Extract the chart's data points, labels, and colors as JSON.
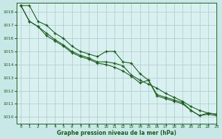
{
  "title": "Graphe pression niveau de la mer (hPa)",
  "background_color": "#c8e8e8",
  "plot_bg_color": "#d8f0f0",
  "grid_color": "#a8c8c8",
  "line_color": "#1a5c1a",
  "xlabel": "Graphe pression niveau de la mer (hPa)",
  "xlim": [
    -0.5,
    23
  ],
  "ylim": [
    1009.5,
    1018.7
  ],
  "yticks": [
    1010,
    1011,
    1012,
    1013,
    1014,
    1015,
    1016,
    1017,
    1018
  ],
  "xticks": [
    0,
    1,
    2,
    3,
    4,
    5,
    6,
    7,
    8,
    9,
    10,
    11,
    12,
    13,
    14,
    15,
    16,
    17,
    18,
    19,
    20,
    21,
    22,
    23
  ],
  "series1": [
    1018.5,
    1018.5,
    1017.3,
    1017.0,
    1016.4,
    1016.0,
    1015.4,
    1015.0,
    1014.8,
    1014.6,
    1015.0,
    1015.0,
    1014.2,
    1014.1,
    1013.3,
    1012.8,
    1011.7,
    1011.5,
    1011.3,
    1011.1,
    1010.5,
    1010.1,
    1010.3,
    1010.2
  ],
  "series2": [
    1018.5,
    1017.3,
    1016.9,
    1016.4,
    1015.9,
    1015.5,
    1015.0,
    1014.7,
    1014.5,
    1014.2,
    1014.2,
    1014.1,
    1013.9,
    1013.2,
    1012.8,
    1012.5,
    1012.2,
    1011.8,
    1011.5,
    1011.2,
    1010.8,
    1010.5,
    1010.3,
    1010.2
  ],
  "series3": [
    1018.5,
    1017.3,
    1016.9,
    1016.2,
    1015.8,
    1015.4,
    1014.9,
    1014.6,
    1014.4,
    1014.1,
    1014.0,
    1013.8,
    1013.5,
    1013.1,
    1012.6,
    1012.8,
    1011.6,
    1011.4,
    1011.2,
    1011.0,
    1010.5,
    1010.1,
    1010.2,
    1010.1
  ]
}
